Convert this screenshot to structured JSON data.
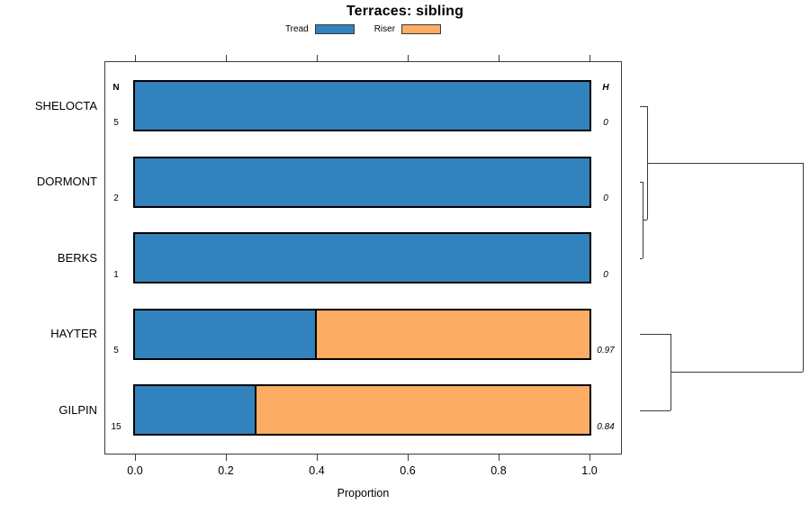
{
  "title": "Terraces: sibling",
  "legend": {
    "items": [
      {
        "label": "Tread",
        "color": "#3182BD"
      },
      {
        "label": "Riser",
        "color": "#FCAC63"
      }
    ]
  },
  "columns": {
    "n_header": "N",
    "h_header": "H"
  },
  "xlabel": "Proportion",
  "chart_data": {
    "type": "bar",
    "orientation": "horizontal",
    "stacked": true,
    "title": "Terraces: sibling",
    "xlabel": "Proportion",
    "xlim": [
      0,
      1
    ],
    "xticks": [
      "0.0",
      "0.2",
      "0.4",
      "0.6",
      "0.8",
      "1.0"
    ],
    "legend_position": "top",
    "grid": false,
    "categories": [
      "SHELOCTA",
      "DORMONT",
      "BERKS",
      "HAYTER",
      "GILPIN"
    ],
    "n_values": [
      "5",
      "2",
      "1",
      "5",
      "15"
    ],
    "h_values": [
      "0",
      "0",
      "0",
      "0.97",
      "0.84"
    ],
    "series": [
      {
        "name": "Tread",
        "color": "#3182BD",
        "values": [
          1,
          1,
          1,
          0.4,
          0.267
        ]
      },
      {
        "name": "Riser",
        "color": "#FCAC63",
        "values": [
          0,
          0,
          0,
          0.6,
          0.733
        ]
      }
    ],
    "dendrogram": {
      "segments": [
        {
          "x1": 0,
          "y1": 0,
          "x2": 0.044,
          "y2": 0
        },
        {
          "x1": 0,
          "y1": 1,
          "x2": 0.014,
          "y2": 1
        },
        {
          "x1": 0,
          "y1": 2,
          "x2": 0.014,
          "y2": 2
        },
        {
          "x1": 0.014,
          "y1": 1,
          "x2": 0.014,
          "y2": 2
        },
        {
          "x1": 0.014,
          "y1": 1.5,
          "x2": 0.044,
          "y2": 1.5
        },
        {
          "x1": 0.044,
          "y1": 0,
          "x2": 0.044,
          "y2": 1.5
        },
        {
          "x1": 0.044,
          "y1": 0.75,
          "x2": 1,
          "y2": 0.75
        },
        {
          "x1": 0,
          "y1": 3,
          "x2": 0.188,
          "y2": 3
        },
        {
          "x1": 0,
          "y1": 4,
          "x2": 0.188,
          "y2": 4
        },
        {
          "x1": 0.188,
          "y1": 3,
          "x2": 0.188,
          "y2": 4
        },
        {
          "x1": 0.188,
          "y1": 3.5,
          "x2": 1,
          "y2": 3.5
        },
        {
          "x1": 1,
          "y1": 0.75,
          "x2": 1,
          "y2": 3.5
        }
      ]
    }
  }
}
